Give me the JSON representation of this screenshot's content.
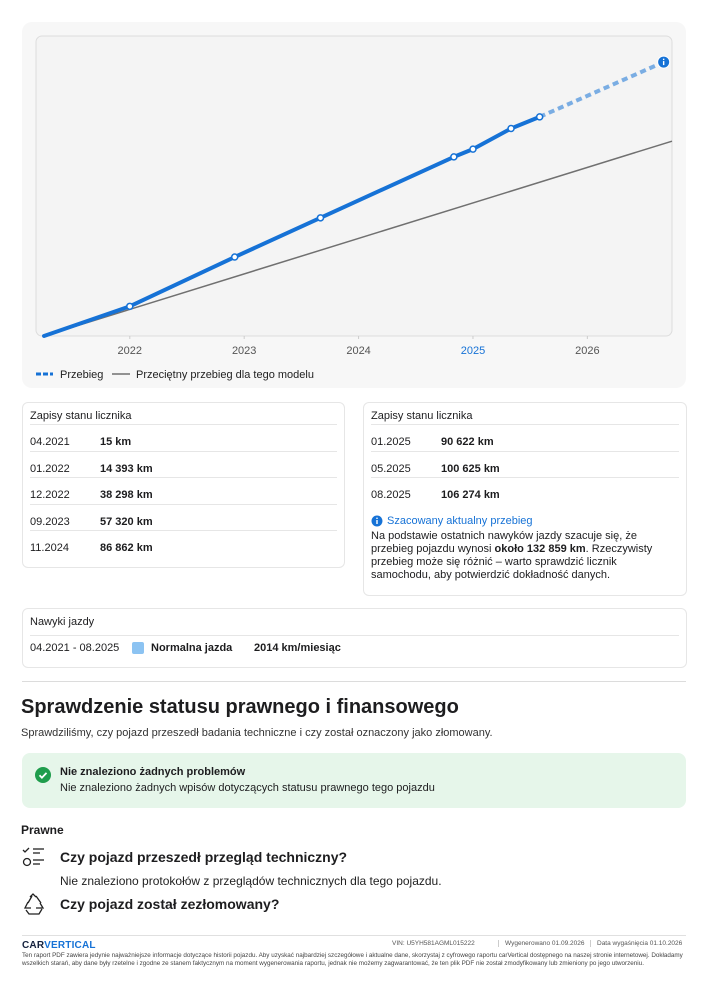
{
  "chart_data": {
    "type": "line",
    "xlim": [
      2021.18,
      2026.74
    ],
    "ylim": [
      0,
      145500
    ],
    "xticks": [
      2022,
      2023,
      2024,
      2025,
      2026
    ],
    "xtick_highlight": 2025,
    "series": [
      {
        "name": "Przebieg",
        "color": "#1672d6",
        "x": [
          2021.25,
          2022.0,
          2022.917,
          2023.667,
          2024.833,
          2025.0,
          2025.333,
          2025.583,
          2026.667
        ],
        "x_labels": [
          "04.2021",
          "01.2022",
          "12.2022",
          "09.2023",
          "11.2024",
          "01.2025",
          "05.2025",
          "08.2025",
          null
        ],
        "values": [
          15,
          14393,
          38298,
          57320,
          86862,
          90622,
          100625,
          106274,
          132859
        ],
        "value_labels": [
          "15 km",
          "14 393 km",
          "38 298 km",
          "57 320 km",
          "86 862 km",
          "90 622 km",
          "100 625 km",
          "106 274 km",
          "około 132 859 km"
        ]
      },
      {
        "name": "Przeciętny przebieg dla tego modelu",
        "color": "#707070",
        "x": [
          2021.25,
          2026.74
        ],
        "values": [
          0,
          94500
        ]
      }
    ]
  },
  "readings_left": {
    "title": "Zapisy stanu licznika"
  },
  "readings_right": {
    "title": "Zapisy stanu licznika",
    "note_title": "Szacowany aktualny przebieg",
    "note_before": "Na podstawie ostatnich nawyków jazdy szacuje się, że przebieg pojazdu wynosi ",
    "note_after": ". Rzeczywisty przebieg może się różnić – warto sprawdzić licznik samochodu, aby potwierdzić dokładność danych."
  },
  "habits": {
    "title": "Nawyki jazdy",
    "period": "04.2021 - 08.2025",
    "style": "Normalna jazda",
    "rate": "2014 km/miesiąc"
  },
  "legal": {
    "heading": "Sprawdzenie statusu prawnego i finansowego",
    "description": "Sprawdziliśmy, czy pojazd przeszedł badania techniczne i czy został oznaczony jako złomowany.",
    "alert_title": "Nie znaleziono żadnych problemów",
    "alert_text": "Nie znaleziono żadnych wpisów dotyczących statusu prawnego tego pojazdu",
    "section": "Prawne",
    "items": [
      {
        "question": "Czy pojazd przeszedł przegląd techniczny?",
        "answer": "Nie znaleziono protokołów z przeglądów technicznych dla tego pojazdu."
      },
      {
        "question": "Czy pojazd został zezłomowany?"
      }
    ]
  },
  "footer": {
    "logo_car": "CAR",
    "logo_vertical": "VERTICAL",
    "vin": "VIN: U5YH581AGML015222",
    "generated": "Wygenerowano 01.09.2026",
    "expires": "Data wygaśnięcia 01.10.2026",
    "disclaimer": "Ten raport PDF zawiera jedynie najważniejsze informacje dotyczące historii pojazdu. Aby uzyskać najbardziej szczegółowe i aktualne dane, skorzystaj z cyfrowego raportu carVertical dostępnego na naszej stronie internetowej. Dokładamy wszelkich starań, aby dane były rzetelne i zgodne ze stanem faktycznym na moment wygenerowania raportu, jednak nie możemy zagwarantować, że ten plik PDF nie został zmodyfikowany lub zmieniony po jego utworzeniu."
  }
}
